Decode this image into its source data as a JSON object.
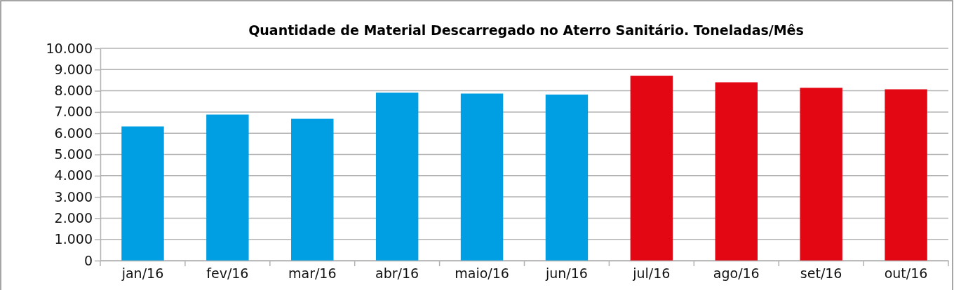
{
  "chart_data": {
    "type": "bar",
    "title": "Quantidade de Material Descarregado no Aterro Sanitário. Toneladas/Mês",
    "categories": [
      "jan/16",
      "fev/16",
      "mar/16",
      "abr/16",
      "maio/16",
      "jun/16",
      "jul/16",
      "ago/16",
      "set/16",
      "out/16"
    ],
    "values": [
      6320,
      6880,
      6680,
      7910,
      7870,
      7820,
      8710,
      8400,
      8140,
      8070
    ],
    "colors": [
      "#009fe3",
      "#009fe3",
      "#009fe3",
      "#009fe3",
      "#009fe3",
      "#009fe3",
      "#e30613",
      "#e30613",
      "#e30613",
      "#e30613"
    ],
    "ylim": [
      0,
      10000
    ],
    "yticks": [
      0,
      {
        "value": 1000,
        "label": "1.000"
      },
      {
        "value": 2000,
        "label": "2.000"
      },
      {
        "value": 3000,
        "label": "3.000"
      },
      {
        "value": 4000,
        "label": "4.000"
      },
      {
        "value": 5000,
        "label": "5.000"
      },
      {
        "value": 6000,
        "label": "6.000"
      },
      {
        "value": 7000,
        "label": "7.000"
      },
      {
        "value": 8000,
        "label": "8.000"
      },
      {
        "value": 9000,
        "label": "9.000"
      },
      {
        "value": 10000,
        "label": "10.000"
      }
    ],
    "grid": "y"
  }
}
